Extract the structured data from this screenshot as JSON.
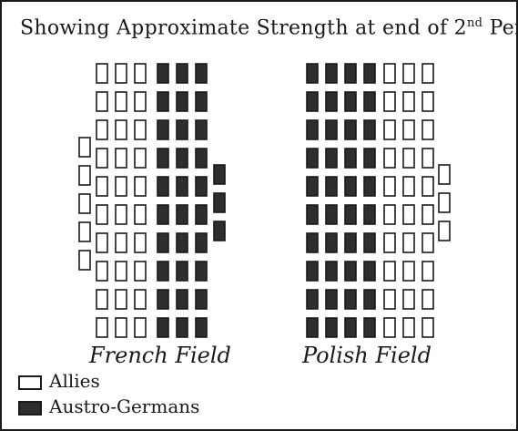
{
  "title": {
    "text_before": "Showing Approximate Strength at end of 2",
    "superscript": "nd",
    "text_after": " Period."
  },
  "fields": {
    "french": {
      "label": "French Field",
      "groups": [
        {
          "side": "Allies",
          "rows": 10,
          "columns": 3
        },
        {
          "side": "Austro-Germans",
          "rows": 10,
          "columns": 3
        },
        {
          "side": "Allies",
          "rows": 5,
          "columns": 1
        },
        {
          "side": "Austro-Germans",
          "rows": 3,
          "columns": 1
        }
      ]
    },
    "polish": {
      "label": "Polish Field",
      "groups": [
        {
          "side": "Austro-Germans",
          "rows": 10,
          "columns": 4
        },
        {
          "side": "Allies",
          "rows": 10,
          "columns": 3
        },
        {
          "side": "Allies",
          "rows": 3,
          "columns": 1
        }
      ]
    }
  },
  "legend": {
    "allies": {
      "label": "Allies",
      "color": "#ffffff"
    },
    "austro_germans": {
      "label": "Austro-Germans",
      "color": "#2e2e2e"
    }
  }
}
